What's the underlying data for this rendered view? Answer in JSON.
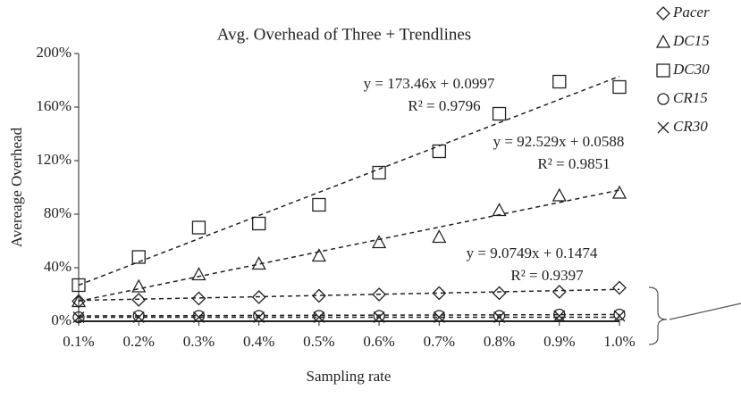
{
  "chart_data": {
    "type": "line",
    "title": "Avg. Overhead of Three + Trendlines",
    "x_label": "Sampling rate",
    "y_label": "Avereage Overhead",
    "categories": [
      "0.1%",
      "0.2%",
      "0.3%",
      "0.4%",
      "0.5%",
      "0.6%",
      "0.7%",
      "0.8%",
      "0.9%",
      "1.0%"
    ],
    "ylim": [
      0,
      200
    ],
    "yticks": [
      {
        "value": 0,
        "label": "0%"
      },
      {
        "value": 40,
        "label": "40%"
      },
      {
        "value": 80,
        "label": "80%"
      },
      {
        "value": 120,
        "label": "120%"
      },
      {
        "value": 160,
        "label": "160%"
      },
      {
        "value": 200,
        "label": "200%"
      }
    ],
    "series": [
      {
        "name": "Pacer",
        "marker": "diamond",
        "color": "#222",
        "values": [
          15,
          16,
          17,
          18,
          19,
          20,
          21,
          21,
          22,
          25
        ],
        "trendline": [
          15.6,
          23.8
        ]
      },
      {
        "name": "DC15",
        "marker": "triangle",
        "color": "#222",
        "values": [
          15,
          26,
          35,
          43,
          49,
          59,
          63,
          83,
          94,
          96
        ],
        "trendline": [
          15,
          98
        ]
      },
      {
        "name": "DC30",
        "marker": "square",
        "color": "#222",
        "values": [
          27,
          48,
          70,
          73,
          87,
          111,
          127,
          155,
          179,
          175
        ],
        "trendline": [
          27,
          183
        ]
      },
      {
        "name": "CR15",
        "marker": "circle",
        "color": "#222",
        "values": [
          3,
          4,
          4,
          4,
          4,
          4,
          4,
          4,
          5,
          5
        ],
        "trendline": [
          4,
          5
        ]
      },
      {
        "name": "CR30",
        "marker": "x",
        "color": "#222",
        "values": [
          3,
          3,
          3,
          3,
          3,
          3,
          3,
          3,
          4,
          4
        ],
        "trendline": [
          3,
          3
        ]
      }
    ],
    "annotations": [
      {
        "lines": [
          "y = 173.46x + 0.0997",
          "R² = 0.9796"
        ]
      },
      {
        "lines": [
          "y = 92.529x + 0.0588",
          "R² = 0.9851"
        ]
      },
      {
        "lines": [
          "y = 9.0749x + 0.1474",
          "R² = 0.9397"
        ]
      }
    ]
  }
}
